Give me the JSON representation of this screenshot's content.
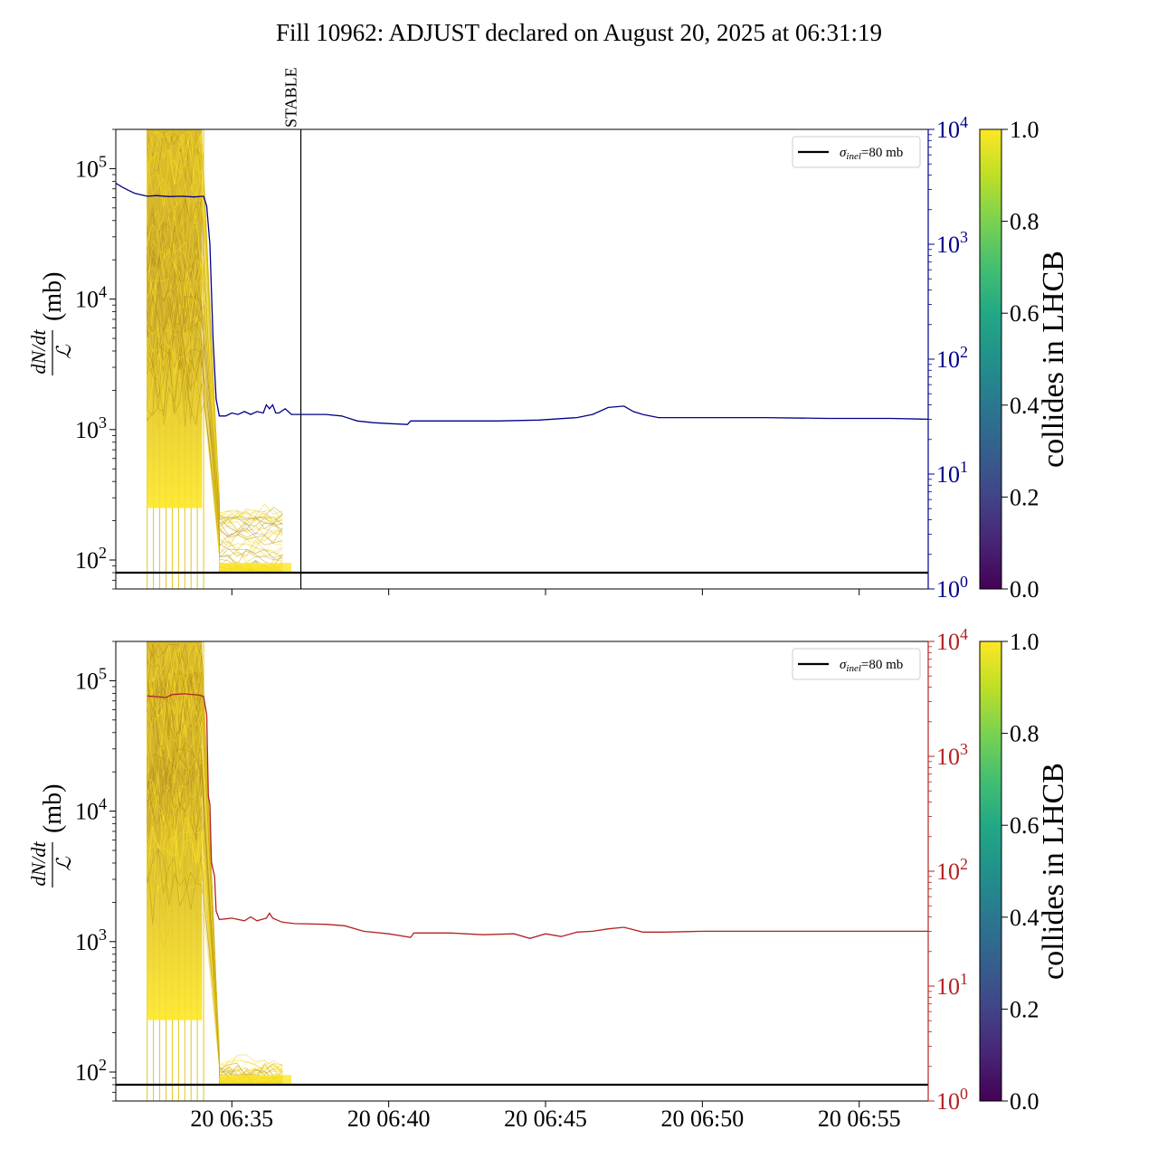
{
  "title": "Fill 10962: ADJUST declared on August 20, 2025 at 06:31:19",
  "colors": {
    "axis": "#000000",
    "top_right_axis": "#00008b",
    "bottom_right_axis": "#b22222",
    "bunch_high": "#fde725",
    "bunch_mid": "#c8a21a",
    "reference_line": "#000000"
  },
  "chart_data": [
    {
      "type": "line",
      "panel": "top",
      "ylabel": {
        "num": "dN/dt",
        "den": "ℒ",
        "unit": "(mb)"
      },
      "yscale": "log",
      "ylim": [
        60,
        200000
      ],
      "y_ticks": [
        {
          "value": 100,
          "base": "10",
          "exp": "2"
        },
        {
          "value": 1000,
          "base": "10",
          "exp": "3"
        },
        {
          "value": 10000,
          "base": "10",
          "exp": "4"
        },
        {
          "value": 100000,
          "base": "10",
          "exp": "5"
        }
      ],
      "y2_scale": "log",
      "y2_lim": [
        1,
        10000
      ],
      "y2_ticks": [
        {
          "value": 1,
          "base": "10",
          "exp": "0"
        },
        {
          "value": 10,
          "base": "10",
          "exp": "1"
        },
        {
          "value": 100,
          "base": "10",
          "exp": "2"
        },
        {
          "value": 1000,
          "base": "10",
          "exp": "3"
        },
        {
          "value": 10000,
          "base": "10",
          "exp": "4"
        }
      ],
      "xlim_minutes": [
        31.3,
        57.2
      ],
      "annotation": {
        "label": "STABLE",
        "x_minute": 37.2
      },
      "legend": {
        "label_base": "σ",
        "label_sub": "inel",
        "label_rest": "=80 mb",
        "position": "upper right"
      },
      "reference_y": 80,
      "bunch_lines_x_minutes": [
        32.3,
        32.5,
        32.7,
        32.9,
        33.1,
        33.3,
        33.5,
        33.7,
        33.9,
        34.1
      ],
      "series": [
        {
          "axis": "right",
          "color": "#00008b",
          "points": [
            [
              31.3,
              3400
            ],
            [
              31.5,
              3150
            ],
            [
              31.7,
              2950
            ],
            [
              31.9,
              2780
            ],
            [
              32.1,
              2700
            ],
            [
              32.3,
              2620
            ],
            [
              32.6,
              2650
            ],
            [
              33.0,
              2600
            ],
            [
              33.4,
              2620
            ],
            [
              33.8,
              2580
            ],
            [
              34.1,
              2620
            ],
            [
              34.2,
              2150
            ],
            [
              34.3,
              1000
            ],
            [
              34.4,
              150
            ],
            [
              34.5,
              45
            ],
            [
              34.6,
              32
            ],
            [
              34.8,
              32
            ],
            [
              35.0,
              34
            ],
            [
              35.2,
              33
            ],
            [
              35.4,
              35
            ],
            [
              35.6,
              33
            ],
            [
              35.8,
              35
            ],
            [
              36.0,
              34
            ],
            [
              36.1,
              40
            ],
            [
              36.2,
              37
            ],
            [
              36.3,
              40
            ],
            [
              36.4,
              34
            ],
            [
              36.5,
              34
            ],
            [
              36.7,
              37
            ],
            [
              36.9,
              33
            ],
            [
              37.2,
              33
            ],
            [
              38.0,
              33
            ],
            [
              38.5,
              32
            ],
            [
              39.0,
              29
            ],
            [
              39.5,
              28
            ],
            [
              40.0,
              27.5
            ],
            [
              40.6,
              27
            ],
            [
              40.7,
              29
            ],
            [
              42.0,
              29
            ],
            [
              43.5,
              29
            ],
            [
              44.8,
              29.5
            ],
            [
              46.0,
              31
            ],
            [
              46.5,
              33
            ],
            [
              47.0,
              38
            ],
            [
              47.5,
              39
            ],
            [
              47.8,
              35
            ],
            [
              48.1,
              33
            ],
            [
              48.6,
              31
            ],
            [
              50.0,
              31
            ],
            [
              52.0,
              31
            ],
            [
              54.0,
              30.5
            ],
            [
              56.0,
              30.5
            ],
            [
              57.2,
              30
            ]
          ]
        }
      ]
    },
    {
      "type": "line",
      "panel": "bottom",
      "ylabel": {
        "num": "dN/dt",
        "den": "ℒ",
        "unit": "(mb)"
      },
      "yscale": "log",
      "ylim": [
        60,
        200000
      ],
      "y_ticks": [
        {
          "value": 100,
          "base": "10",
          "exp": "2"
        },
        {
          "value": 1000,
          "base": "10",
          "exp": "3"
        },
        {
          "value": 10000,
          "base": "10",
          "exp": "4"
        },
        {
          "value": 100000,
          "base": "10",
          "exp": "5"
        }
      ],
      "y2_scale": "log",
      "y2_lim": [
        1,
        10000
      ],
      "y2_ticks": [
        {
          "value": 1,
          "base": "10",
          "exp": "0"
        },
        {
          "value": 10,
          "base": "10",
          "exp": "1"
        },
        {
          "value": 100,
          "base": "10",
          "exp": "2"
        },
        {
          "value": 1000,
          "base": "10",
          "exp": "3"
        },
        {
          "value": 10000,
          "base": "10",
          "exp": "4"
        }
      ],
      "xlim_minutes": [
        31.3,
        57.2
      ],
      "x_ticks": [
        {
          "minute": 35,
          "label": "20 06:35"
        },
        {
          "minute": 40,
          "label": "20 06:40"
        },
        {
          "minute": 45,
          "label": "20 06:45"
        },
        {
          "minute": 50,
          "label": "20 06:50"
        },
        {
          "minute": 55,
          "label": "20 06:55"
        }
      ],
      "legend": {
        "label_base": "σ",
        "label_sub": "inel",
        "label_rest": "=80 mb",
        "position": "upper right"
      },
      "reference_y": 80,
      "bunch_lines_x_minutes": [
        32.3,
        32.5,
        32.7,
        32.9,
        33.1,
        33.3,
        33.5,
        33.7,
        33.9,
        34.1
      ],
      "series": [
        {
          "axis": "right",
          "color": "#b22222",
          "points": [
            [
              32.3,
              3350
            ],
            [
              32.6,
              3300
            ],
            [
              32.9,
              3250
            ],
            [
              33.1,
              3450
            ],
            [
              33.5,
              3500
            ],
            [
              34.0,
              3400
            ],
            [
              34.1,
              3300
            ],
            [
              34.2,
              2300
            ],
            [
              34.25,
              450
            ],
            [
              34.3,
              380
            ],
            [
              34.35,
              120
            ],
            [
              34.45,
              90
            ],
            [
              34.5,
              45
            ],
            [
              34.6,
              38
            ],
            [
              35.0,
              39
            ],
            [
              35.4,
              37
            ],
            [
              35.6,
              40
            ],
            [
              35.8,
              37
            ],
            [
              36.1,
              39
            ],
            [
              36.2,
              43
            ],
            [
              36.3,
              39
            ],
            [
              36.6,
              36
            ],
            [
              37.0,
              35
            ],
            [
              38.0,
              34.5
            ],
            [
              38.6,
              33.5
            ],
            [
              39.2,
              30
            ],
            [
              40.0,
              28.5
            ],
            [
              40.7,
              26.5
            ],
            [
              40.8,
              29
            ],
            [
              42.0,
              29
            ],
            [
              43.0,
              28
            ],
            [
              44.0,
              28.5
            ],
            [
              44.5,
              26
            ],
            [
              45.0,
              28.5
            ],
            [
              45.5,
              27
            ],
            [
              46.0,
              29.5
            ],
            [
              46.5,
              30
            ],
            [
              47.0,
              31.5
            ],
            [
              47.5,
              32.5
            ],
            [
              47.8,
              31
            ],
            [
              48.1,
              29.5
            ],
            [
              48.8,
              29.5
            ],
            [
              50.0,
              30
            ],
            [
              52.0,
              30
            ],
            [
              54.0,
              30
            ],
            [
              56.0,
              30
            ],
            [
              57.2,
              30
            ]
          ]
        }
      ]
    }
  ],
  "colorbar": {
    "label": "collides in LHCB",
    "ticks": [
      "0.0",
      "0.2",
      "0.4",
      "0.6",
      "0.8",
      "1.0"
    ],
    "colormap": "viridis",
    "range": [
      0,
      1
    ]
  }
}
